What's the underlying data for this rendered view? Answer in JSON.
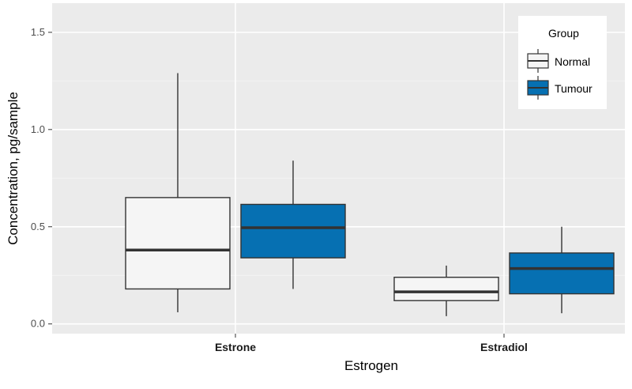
{
  "chart_data": {
    "type": "box",
    "xlabel": "Estrogen",
    "ylabel": "Concentration, pg/sample",
    "ylim": [
      -0.05,
      1.65
    ],
    "yticks": [
      0.0,
      0.5,
      1.0,
      1.5
    ],
    "ytick_labels": [
      "0.0",
      "0.5",
      "1.0",
      "1.5"
    ],
    "categories": [
      "Estrone",
      "Estradiol"
    ],
    "legend": {
      "title": "Group",
      "position": "top-right"
    },
    "grid": true,
    "series": [
      {
        "name": "Normal",
        "color": "#f5f5f5",
        "boxes": [
          {
            "category": "Estrone",
            "min": 0.06,
            "q1": 0.18,
            "median": 0.38,
            "q3": 0.65,
            "max": 1.29
          },
          {
            "category": "Estradiol",
            "min": 0.04,
            "q1": 0.12,
            "median": 0.165,
            "q3": 0.24,
            "max": 0.3
          }
        ]
      },
      {
        "name": "Tumour",
        "color": "#0670b2",
        "boxes": [
          {
            "category": "Estrone",
            "min": 0.18,
            "q1": 0.34,
            "median": 0.495,
            "q3": 0.615,
            "max": 0.84
          },
          {
            "category": "Estradiol",
            "min": 0.055,
            "q1": 0.155,
            "median": 0.285,
            "q3": 0.365,
            "max": 0.5
          }
        ]
      }
    ]
  }
}
